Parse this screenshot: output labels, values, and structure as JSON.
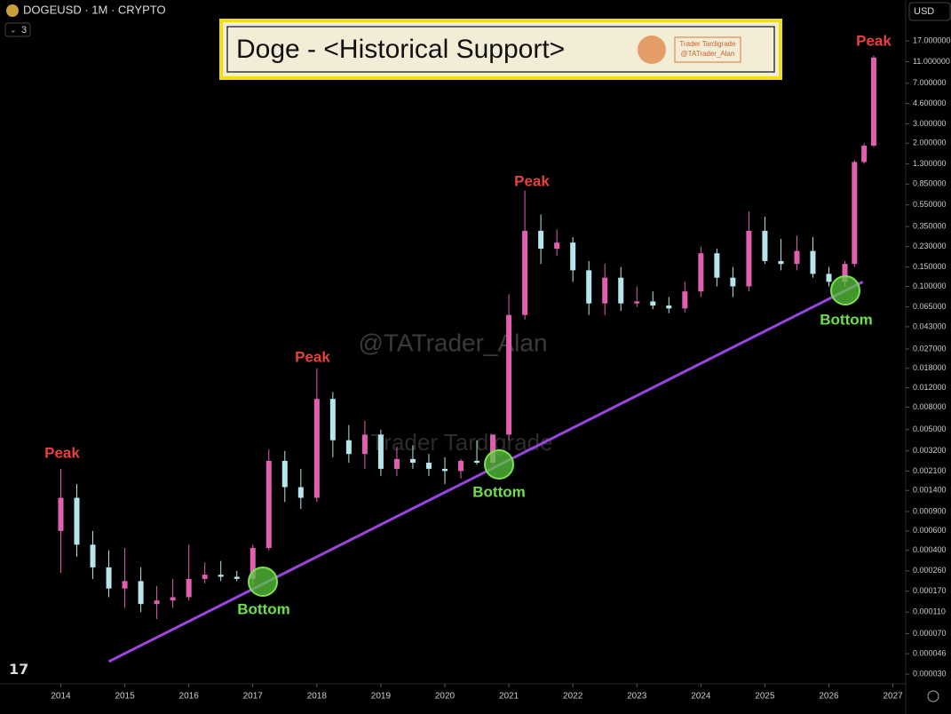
{
  "chart_data": {
    "type": "candlestick",
    "title": "Doge - <Historical Support>",
    "symbol": "DOGEUSD · 1M · CRYPTO",
    "interval_count": 3,
    "currency": "USD",
    "badge": [
      "Trader Tardigrade",
      "@TATrader_Alan"
    ],
    "watermarks": [
      "@TATrader_Alan",
      "Trader Tardigrade"
    ],
    "annotations": [
      "Peak",
      "Peak",
      "Peak",
      "Peak",
      "Bottom",
      "Bottom",
      "Bottom"
    ],
    "log_scale": true,
    "up_color": "#e060b0",
    "down_color": "#b8e4ec",
    "x": [
      2014.0,
      2014.25,
      2014.5,
      2014.75,
      2015.0,
      2015.25,
      2015.5,
      2015.75,
      2016.0,
      2016.25,
      2016.5,
      2016.75,
      2017.0,
      2017.25,
      2017.5,
      2017.75,
      2018.0,
      2018.25,
      2018.5,
      2018.75,
      2019.0,
      2019.25,
      2019.5,
      2019.75,
      2020.0,
      2020.25,
      2020.5,
      2020.75,
      2021.0,
      2021.25,
      2021.5,
      2021.75,
      2022.0,
      2022.25,
      2022.5,
      2022.75,
      2023.0,
      2023.25,
      2023.5,
      2023.75,
      2024.0,
      2024.25,
      2024.5,
      2024.75,
      2025.0,
      2025.25,
      2025.5,
      2025.75,
      2026.0,
      2026.25,
      2026.4,
      2026.55,
      2026.7
    ],
    "open": [
      0.0006,
      0.0012,
      0.00045,
      0.00028,
      0.00018,
      0.00021,
      0.00013,
      0.00014,
      0.00015,
      0.00022,
      0.00024,
      0.00023,
      0.00022,
      0.00042,
      0.0026,
      0.0015,
      0.0012,
      0.0095,
      0.004,
      0.003,
      0.0045,
      0.0022,
      0.0027,
      0.0025,
      0.0022,
      0.0021,
      0.0026,
      0.0025,
      0.0045,
      0.055,
      0.32,
      0.22,
      0.25,
      0.14,
      0.07,
      0.12,
      0.07,
      0.073,
      0.067,
      0.063,
      0.09,
      0.2,
      0.12,
      0.1,
      0.32,
      0.17,
      0.16,
      0.21,
      0.13,
      0.11,
      0.16,
      1.35,
      1.9
    ],
    "high": [
      0.0022,
      0.0016,
      0.0006,
      0.0004,
      0.00042,
      0.00028,
      0.00019,
      0.00022,
      0.00045,
      0.00031,
      0.00032,
      0.00026,
      0.00045,
      0.0033,
      0.0032,
      0.0022,
      0.018,
      0.011,
      0.0055,
      0.006,
      0.005,
      0.0035,
      0.0036,
      0.003,
      0.0028,
      0.0027,
      0.004,
      0.0032,
      0.085,
      0.74,
      0.45,
      0.33,
      0.28,
      0.17,
      0.16,
      0.15,
      0.1,
      0.09,
      0.08,
      0.11,
      0.23,
      0.22,
      0.15,
      0.48,
      0.43,
      0.27,
      0.29,
      0.28,
      0.15,
      0.17,
      1.4,
      2.0,
      12.5
    ],
    "low": [
      0.00025,
      0.00035,
      0.00022,
      0.00015,
      0.00012,
      0.00011,
      9.5e-05,
      0.00012,
      0.00014,
      0.0002,
      0.00021,
      0.00021,
      0.00019,
      0.0004,
      0.0011,
      0.00095,
      0.0011,
      0.0028,
      0.0025,
      0.0022,
      0.0019,
      0.0019,
      0.0022,
      0.0019,
      0.0016,
      0.0018,
      0.0024,
      0.0024,
      0.004,
      0.05,
      0.16,
      0.19,
      0.11,
      0.055,
      0.055,
      0.06,
      0.065,
      0.062,
      0.057,
      0.058,
      0.08,
      0.1,
      0.08,
      0.09,
      0.16,
      0.14,
      0.14,
      0.12,
      0.1,
      0.1,
      0.15,
      1.3,
      1.85
    ],
    "close": [
      0.0012,
      0.00045,
      0.00028,
      0.00018,
      0.00021,
      0.00013,
      0.00014,
      0.00015,
      0.00022,
      0.00024,
      0.00023,
      0.00022,
      0.00042,
      0.0026,
      0.0015,
      0.0012,
      0.0095,
      0.004,
      0.003,
      0.0045,
      0.0022,
      0.0027,
      0.0025,
      0.0022,
      0.0021,
      0.0026,
      0.0025,
      0.0045,
      0.055,
      0.32,
      0.22,
      0.25,
      0.14,
      0.07,
      0.12,
      0.07,
      0.073,
      0.067,
      0.063,
      0.09,
      0.2,
      0.12,
      0.1,
      0.32,
      0.17,
      0.16,
      0.21,
      0.13,
      0.11,
      0.16,
      1.35,
      1.9,
      12
    ],
    "trendline": {
      "x": [
        2014.75,
        2026.53
      ],
      "values": [
        3.9e-05,
        0.11
      ],
      "color": "#9b45e0"
    },
    "xlim": [
      2013.05,
      2027.2
    ],
    "xticks": [
      2014,
      2015,
      2016,
      2017,
      2018,
      2019,
      2020,
      2021,
      2022,
      2023,
      2024,
      2025,
      2026,
      2027
    ],
    "ylim": [
      2.45e-05,
      40
    ],
    "yticks": [
      {
        "value": 17,
        "label": "17.000000"
      },
      {
        "value": 11,
        "label": "11.000000"
      },
      {
        "value": 7,
        "label": "7.000000"
      },
      {
        "value": 4.6,
        "label": "4.600000"
      },
      {
        "value": 3,
        "label": "3.000000"
      },
      {
        "value": 2,
        "label": "2.000000"
      },
      {
        "value": 1.3,
        "label": "1.300000"
      },
      {
        "value": 0.85,
        "label": "0.850000"
      },
      {
        "value": 0.55,
        "label": "0.550000"
      },
      {
        "value": 0.35,
        "label": "0.350000"
      },
      {
        "value": 0.23,
        "label": "0.230000"
      },
      {
        "value": 0.15,
        "label": "0.150000"
      },
      {
        "value": 0.1,
        "label": "0.100000"
      },
      {
        "value": 0.065,
        "label": "0.065000"
      },
      {
        "value": 0.043,
        "label": "0.043000"
      },
      {
        "value": 0.027,
        "label": "0.027000"
      },
      {
        "value": 0.018,
        "label": "0.018000"
      },
      {
        "value": 0.012,
        "label": "0.012000"
      },
      {
        "value": 0.008,
        "label": "0.008000"
      },
      {
        "value": 0.005,
        "label": "0.005000"
      },
      {
        "value": 0.0032,
        "label": "0.003200"
      },
      {
        "value": 0.0021,
        "label": "0.002100"
      },
      {
        "value": 0.0014,
        "label": "0.001400"
      },
      {
        "value": 0.0009,
        "label": "0.000900"
      },
      {
        "value": 0.0006,
        "label": "0.000600"
      },
      {
        "value": 0.0004,
        "label": "0.000400"
      },
      {
        "value": 0.00026,
        "label": "0.000260"
      },
      {
        "value": 0.00017,
        "label": "0.000170"
      },
      {
        "value": 0.00011,
        "label": "0.000110"
      },
      {
        "value": 7e-05,
        "label": "0.000070"
      },
      {
        "value": 4.6e-05,
        "label": "0.000046"
      },
      {
        "value": 3e-05,
        "label": "0.000030"
      }
    ]
  }
}
